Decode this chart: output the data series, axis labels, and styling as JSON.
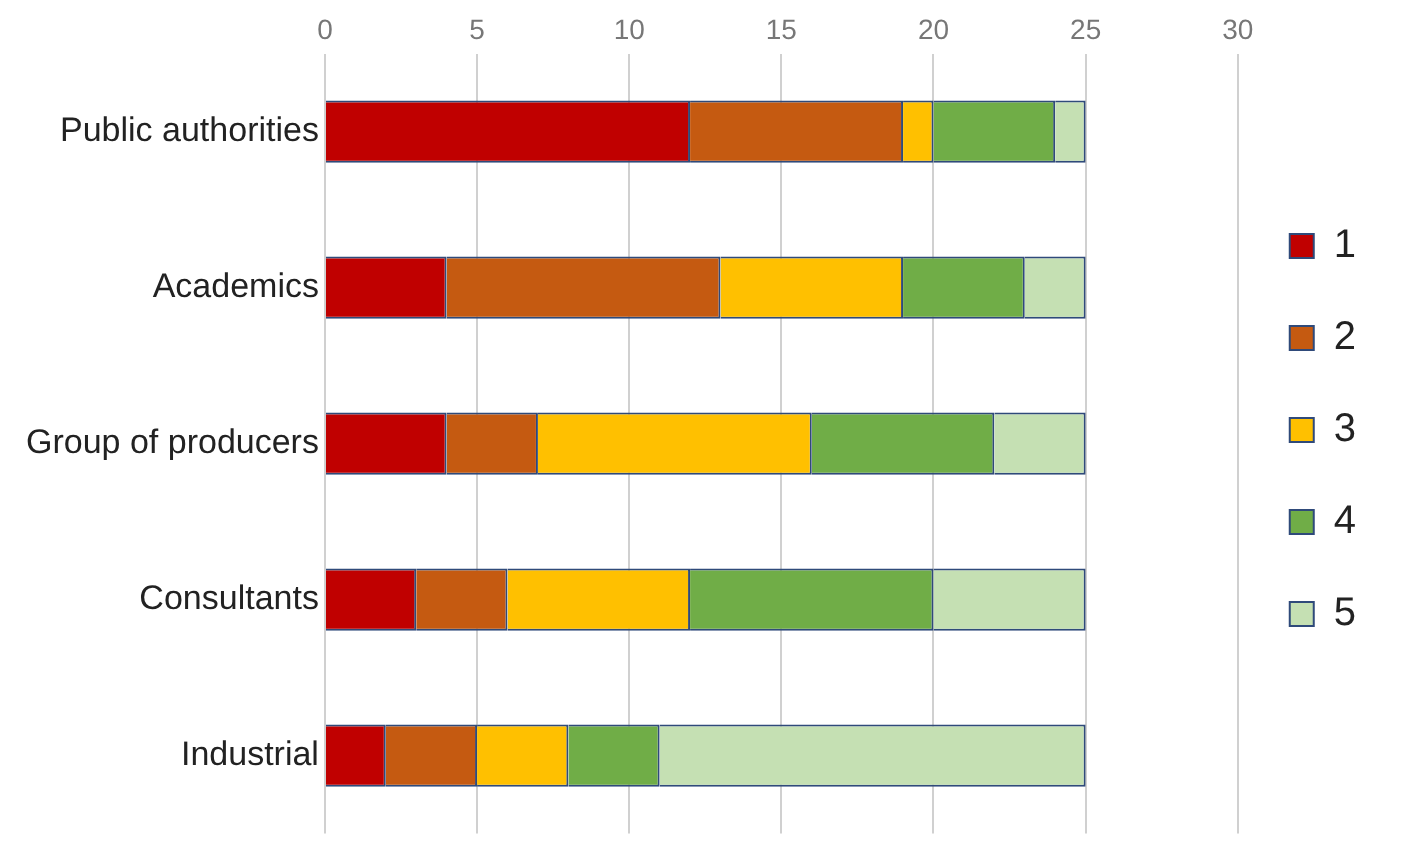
{
  "chart_data": {
    "type": "bar",
    "orientation": "horizontal",
    "stacked": true,
    "categories": [
      "Public authorities",
      "Academics",
      "Group of producers",
      "Consultants",
      "Industrial"
    ],
    "series": [
      {
        "name": "1",
        "color": "#c00000",
        "values": [
          12,
          4,
          4,
          3,
          2
        ]
      },
      {
        "name": "2",
        "color": "#c55a11",
        "values": [
          7,
          9,
          3,
          3,
          3
        ]
      },
      {
        "name": "3",
        "color": "#ffc000",
        "values": [
          1,
          6,
          9,
          6,
          3
        ]
      },
      {
        "name": "4",
        "color": "#70ad47",
        "values": [
          4,
          4,
          6,
          8,
          3
        ]
      },
      {
        "name": "5",
        "color": "#c5e0b3",
        "values": [
          1,
          2,
          3,
          5,
          14
        ]
      }
    ],
    "xlim": [
      0,
      30
    ],
    "xticks": [
      0,
      5,
      10,
      15,
      20,
      25,
      30
    ],
    "grid": "x",
    "legend": "right"
  }
}
